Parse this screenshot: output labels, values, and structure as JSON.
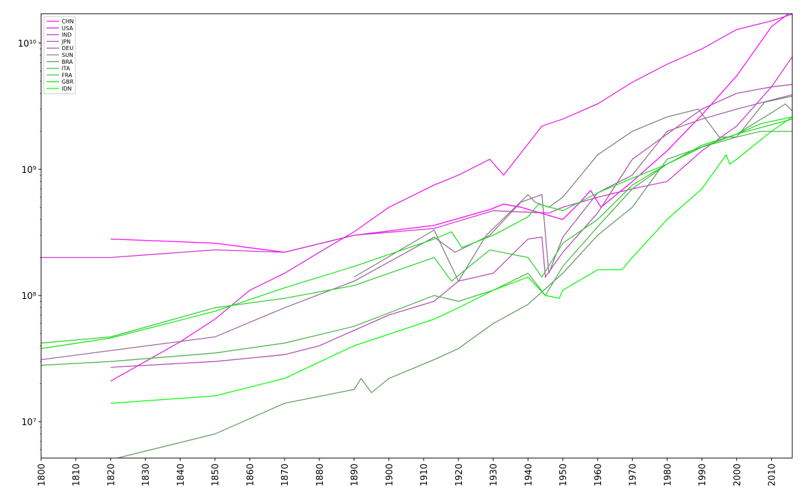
{
  "chart_data": {
    "type": "line",
    "yscale": "log",
    "legend": "upper left",
    "xlim": [
      1800,
      2016
    ],
    "xticks": [
      1800,
      1810,
      1820,
      1830,
      1840,
      1850,
      1860,
      1870,
      1880,
      1890,
      1900,
      1910,
      1920,
      1930,
      1940,
      1950,
      1960,
      1970,
      1980,
      1990,
      2000,
      2010
    ],
    "ylim": [
      5150000,
      17100000000
    ],
    "yticks": [
      {
        "value": 10000000,
        "label": "10⁷"
      },
      {
        "value": 100000000,
        "label": "10⁸"
      },
      {
        "value": 1000000000,
        "label": "10⁹"
      },
      {
        "value": 10000000000,
        "label": "10¹⁰"
      }
    ],
    "series": [
      {
        "name": "CHN",
        "color": "#ff00ff",
        "x": [
          1820,
          1850,
          1870,
          1890,
          1913,
          1929,
          1933,
          1938,
          1950,
          1955,
          1958,
          1961,
          1970,
          1980,
          1990,
          2000,
          2010,
          2016
        ],
        "values": [
          280000000,
          260000000,
          220000000,
          300000000,
          360000000,
          480000000,
          530000000,
          500000000,
          400000000,
          550000000,
          680000000,
          500000000,
          800000000,
          1400000000,
          2700000000,
          5500000000,
          13500000000,
          18000000000
        ]
      },
      {
        "name": "USA",
        "color": "#e619e6",
        "x": [
          1820,
          1830,
          1840,
          1850,
          1860,
          1870,
          1880,
          1890,
          1900,
          1913,
          1920,
          1929,
          1933,
          1944,
          1950,
          1960,
          1970,
          1980,
          1990,
          2000,
          2010,
          2016
        ],
        "values": [
          21000000,
          30000000,
          43000000,
          65000000,
          110000000,
          150000000,
          220000000,
          320000000,
          500000000,
          750000000,
          900000000,
          1200000000,
          900000000,
          2200000000,
          2500000000,
          3300000000,
          4900000000,
          6800000000,
          9000000000,
          12800000000,
          15000000000,
          17000000000
        ]
      },
      {
        "name": "IND",
        "color": "#cc33cc",
        "x": [
          1800,
          1820,
          1850,
          1870,
          1890,
          1913,
          1930,
          1946,
          1950,
          1960,
          1970,
          1980,
          1990,
          2000,
          2010,
          2016
        ],
        "values": [
          200000000,
          200000000,
          230000000,
          220000000,
          300000000,
          340000000,
          470000000,
          450000000,
          500000000,
          600000000,
          700000000,
          800000000,
          1400000000,
          2200000000,
          4500000000,
          7800000000
        ]
      },
      {
        "name": "JPN",
        "color": "#b34db3",
        "x": [
          1820,
          1850,
          1870,
          1880,
          1900,
          1913,
          1920,
          1930,
          1940,
          1944,
          1945,
          1950,
          1960,
          1970,
          1980,
          1990,
          2000,
          2010,
          2016
        ],
        "values": [
          27000000,
          30000000,
          34000000,
          40000000,
          70000000,
          90000000,
          130000000,
          150000000,
          280000000,
          290000000,
          140000000,
          220000000,
          450000000,
          1200000000,
          1900000000,
          3000000000,
          4000000000,
          4500000000,
          4700000000
        ]
      },
      {
        "name": "DEU",
        "color": "#996699",
        "x": [
          1800,
          1850,
          1870,
          1890,
          1913,
          1919,
          1929,
          1938,
          1944,
          1946,
          1950,
          1960,
          1970,
          1980,
          1990,
          2000,
          2016
        ],
        "values": [
          31000000,
          47000000,
          80000000,
          130000000,
          290000000,
          220000000,
          300000000,
          550000000,
          630000000,
          150000000,
          290000000,
          650000000,
          900000000,
          2000000000,
          2500000000,
          3000000000,
          3900000000
        ]
      },
      {
        "name": "SUN",
        "color": "#808080",
        "x": [
          1890,
          1913,
          1920,
          1928,
          1940,
          1942,
          1946,
          1950,
          1960,
          1970,
          1980,
          1989,
          1995,
          2000,
          2008,
          2016
        ],
        "values": [
          140000000,
          330000000,
          130000000,
          300000000,
          630000000,
          550000000,
          500000000,
          600000000,
          1300000000,
          2000000000,
          2600000000,
          3000000000,
          1800000000,
          1800000000,
          3400000000,
          3800000000
        ]
      },
      {
        "name": "BRA",
        "color": "#669966",
        "x": [
          1820,
          1850,
          1870,
          1890,
          1892,
          1895,
          1900,
          1913,
          1920,
          1930,
          1940,
          1950,
          1960,
          1970,
          1980,
          1990,
          2000,
          2010,
          2014,
          2016
        ],
        "values": [
          5000000,
          8000000,
          14000000,
          18000000,
          22000000,
          17000000,
          22000000,
          31000000,
          38000000,
          60000000,
          85000000,
          150000000,
          300000000,
          500000000,
          1200000000,
          1500000000,
          1900000000,
          2800000000,
          3300000000,
          2900000000
        ]
      },
      {
        "name": "ITA",
        "color": "#4db34d",
        "x": [
          1800,
          1820,
          1850,
          1870,
          1890,
          1913,
          1920,
          1930,
          1940,
          1945,
          1950,
          1960,
          1970,
          1980,
          1990,
          2000,
          2007,
          2016
        ],
        "values": [
          28000000,
          30000000,
          35000000,
          42000000,
          57000000,
          100000000,
          90000000,
          110000000,
          150000000,
          100000000,
          170000000,
          350000000,
          700000000,
          1100000000,
          1500000000,
          1800000000,
          2000000000,
          2000000000
        ]
      },
      {
        "name": "FRA",
        "color": "#33cc33",
        "x": [
          1800,
          1820,
          1850,
          1870,
          1890,
          1913,
          1918,
          1929,
          1940,
          1944,
          1950,
          1960,
          1970,
          1980,
          1990,
          2000,
          2016
        ],
        "values": [
          42000000,
          47000000,
          80000000,
          95000000,
          120000000,
          200000000,
          130000000,
          230000000,
          200000000,
          140000000,
          260000000,
          400000000,
          750000000,
          1100000000,
          1500000000,
          1900000000,
          2500000000
        ]
      },
      {
        "name": "GBR",
        "color": "#19e619",
        "x": [
          1800,
          1820,
          1850,
          1870,
          1890,
          1913,
          1918,
          1921,
          1930,
          1940,
          1943,
          1950,
          1960,
          1970,
          1980,
          1990,
          2000,
          2007,
          2016
        ],
        "values": [
          38000000,
          46000000,
          75000000,
          115000000,
          170000000,
          280000000,
          320000000,
          240000000,
          300000000,
          420000000,
          530000000,
          470000000,
          650000000,
          850000000,
          1100000000,
          1550000000,
          1900000000,
          2300000000,
          2600000000
        ]
      },
      {
        "name": "IDN",
        "color": "#00ff00",
        "x": [
          1820,
          1850,
          1870,
          1890,
          1913,
          1920,
          1930,
          1940,
          1945,
          1949,
          1950,
          1960,
          1967,
          1970,
          1980,
          1990,
          1997,
          1998,
          2000,
          2010,
          2016
        ],
        "values": [
          14000000,
          16000000,
          22000000,
          40000000,
          65000000,
          80000000,
          110000000,
          140000000,
          100000000,
          95000000,
          110000000,
          160000000,
          160000000,
          200000000,
          400000000,
          700000000,
          1300000000,
          1100000000,
          1200000000,
          2000000000,
          2600000000
        ]
      }
    ]
  }
}
